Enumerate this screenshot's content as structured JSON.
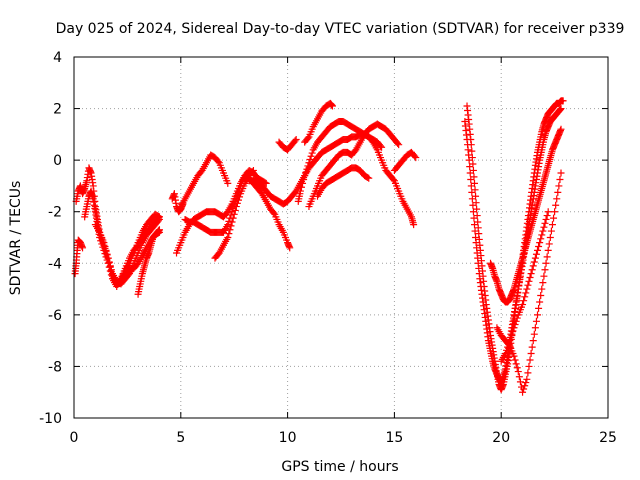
{
  "chart_data": {
    "type": "scatter",
    "title": "Day 025 of 2024, Sidereal Day-to-day VTEC variation (SDTVAR) for receiver p339",
    "xlabel": "GPS time / hours",
    "ylabel": "SDTVAR / TECUs",
    "xlim": [
      0,
      25
    ],
    "ylim": [
      -10,
      4
    ],
    "xticks": [
      "0",
      "5",
      "10",
      "15",
      "20",
      "25"
    ],
    "yticks": [
      "-10",
      "-8",
      "-6",
      "-4",
      "-2",
      "0",
      "2",
      "4"
    ],
    "grid": true,
    "marker": "plus",
    "color": "#ff0000",
    "series": [
      {
        "x": [
          0.05,
          0.1,
          0.15,
          0.2,
          0.3,
          0.4
        ],
        "y": [
          -4.4,
          -4.0,
          -3.5,
          -3.1,
          -3.2,
          -3.4
        ]
      },
      {
        "x": [
          0.1,
          0.2,
          0.3,
          0.4,
          0.5,
          0.6,
          0.7,
          0.8,
          0.9,
          1.0,
          1.1,
          1.2,
          1.4,
          1.6,
          1.8,
          2.0,
          2.2,
          2.4,
          2.6,
          2.8,
          3.0,
          3.2,
          3.4,
          3.6,
          3.8,
          4.0
        ],
        "y": [
          -1.6,
          -1.2,
          -1.0,
          -1.3,
          -1.1,
          -0.8,
          -0.3,
          -0.5,
          -1.0,
          -1.8,
          -2.3,
          -2.8,
          -3.3,
          -3.8,
          -4.5,
          -4.8,
          -4.6,
          -4.3,
          -4.0,
          -3.6,
          -3.2,
          -2.8,
          -2.5,
          -2.3,
          -2.1,
          -2.2
        ]
      },
      {
        "x": [
          0.5,
          0.6,
          0.7,
          0.8,
          0.9,
          1.0,
          1.1,
          1.2,
          1.4,
          1.6,
          1.8,
          2.0,
          2.2,
          2.4,
          2.6,
          2.8,
          3.0,
          3.2,
          3.4,
          3.6,
          3.8,
          4.0
        ],
        "y": [
          -2.2,
          -1.8,
          -1.4,
          -1.2,
          -1.5,
          -2.0,
          -2.5,
          -3.0,
          -3.5,
          -4.0,
          -4.6,
          -4.9,
          -4.6,
          -4.2,
          -3.8,
          -3.5,
          -3.3,
          -3.0,
          -2.8,
          -2.6,
          -2.4,
          -2.2
        ]
      },
      {
        "x": [
          1.0,
          1.2,
          1.4,
          1.6,
          1.8,
          2.0,
          2.2,
          2.4,
          2.6,
          2.8,
          3.0,
          3.2,
          3.4,
          3.6,
          3.8,
          4.0
        ],
        "y": [
          -2.5,
          -2.8,
          -3.2,
          -3.8,
          -4.4,
          -4.7,
          -4.8,
          -4.6,
          -4.4,
          -4.0,
          -3.6,
          -3.2,
          -2.9,
          -2.7,
          -2.5,
          -2.3
        ]
      },
      {
        "x": [
          2.2,
          2.4,
          2.6,
          2.8,
          3.0,
          3.2,
          3.4,
          3.6,
          3.8,
          4.0
        ],
        "y": [
          -4.7,
          -4.5,
          -4.3,
          -4.2,
          -4.0,
          -3.7,
          -3.4,
          -3.1,
          -2.9,
          -2.8
        ]
      },
      {
        "x": [
          3.0,
          3.1,
          3.2,
          3.3,
          3.4,
          3.5,
          3.6,
          3.7,
          3.8,
          3.9,
          4.0
        ],
        "y": [
          -5.2,
          -4.8,
          -4.4,
          -4.1,
          -3.8,
          -3.6,
          -3.3,
          -3.0,
          -2.9,
          -2.8,
          -2.7
        ]
      },
      {
        "x": [
          4.6,
          4.7,
          4.8,
          4.9,
          5.0,
          5.1
        ],
        "y": [
          -1.5,
          -1.3,
          -1.8,
          -2.0,
          -1.9,
          -1.7
        ]
      },
      {
        "x": [
          4.8,
          5.0,
          5.2,
          5.4,
          5.6,
          5.8,
          6.0,
          6.2,
          6.4,
          6.6,
          6.8,
          7.0,
          7.2,
          7.4,
          7.6,
          7.8,
          8.0,
          8.2,
          8.4,
          8.6,
          8.8,
          9.0,
          9.2,
          9.4,
          9.6,
          9.8,
          10.0,
          10.1
        ],
        "y": [
          -3.6,
          -3.2,
          -2.8,
          -2.5,
          -2.3,
          -2.2,
          -2.1,
          -2.0,
          -2.0,
          -2.0,
          -2.1,
          -2.2,
          -2.0,
          -1.7,
          -1.3,
          -0.9,
          -0.6,
          -0.7,
          -0.9,
          -1.1,
          -1.3,
          -1.6,
          -1.9,
          -2.1,
          -2.5,
          -2.8,
          -3.2,
          -3.4
        ]
      },
      {
        "x": [
          5.2,
          5.4,
          5.6,
          5.8,
          6.0,
          6.2,
          6.4,
          6.6,
          6.8,
          7.0,
          7.2,
          7.4,
          7.6,
          7.8,
          8.0,
          8.2,
          8.4,
          8.6,
          8.8,
          9.0
        ],
        "y": [
          -2.3,
          -2.4,
          -2.4,
          -2.5,
          -2.6,
          -2.7,
          -2.8,
          -2.8,
          -2.8,
          -2.8,
          -2.5,
          -2.0,
          -1.5,
          -1.0,
          -0.6,
          -0.4,
          -0.5,
          -0.7,
          -0.8,
          -0.9
        ]
      },
      {
        "x": [
          5.0,
          5.2,
          5.4,
          5.6,
          5.8,
          6.0,
          6.2,
          6.4,
          6.6,
          6.8,
          7.0,
          7.2
        ],
        "y": [
          -1.8,
          -1.5,
          -1.2,
          -0.9,
          -0.6,
          -0.4,
          -0.1,
          0.2,
          0.1,
          -0.1,
          -0.5,
          -0.9
        ]
      },
      {
        "x": [
          6.6,
          6.8,
          7.0,
          7.2,
          7.4,
          7.6,
          7.8,
          8.0,
          8.2,
          8.4
        ],
        "y": [
          -3.8,
          -3.6,
          -3.3,
          -3.0,
          -2.4,
          -1.8,
          -1.3,
          -0.9,
          -0.6,
          -0.4
        ]
      },
      {
        "x": [
          8.2,
          8.4,
          8.6,
          8.8,
          9.0,
          9.2,
          9.4,
          9.6,
          9.8,
          10.0,
          10.2,
          10.4,
          10.6,
          10.8,
          11.0,
          11.2,
          11.4,
          11.6,
          11.8,
          12.0,
          12.2,
          12.4,
          12.6,
          12.8,
          13.0,
          13.2,
          13.4,
          13.6,
          13.8,
          14.0,
          14.2,
          14.4
        ],
        "y": [
          -0.8,
          -0.8,
          -0.9,
          -1.0,
          -1.2,
          -1.4,
          -1.5,
          -1.6,
          -1.7,
          -1.6,
          -1.4,
          -1.2,
          -0.9,
          -0.6,
          -0.3,
          -0.1,
          0.1,
          0.3,
          0.4,
          0.5,
          0.6,
          0.7,
          0.8,
          0.8,
          0.9,
          0.9,
          1.0,
          1.0,
          0.9,
          0.8,
          0.7,
          0.5
        ]
      },
      {
        "x": [
          9.6,
          9.8,
          10.0,
          10.2,
          10.4
        ],
        "y": [
          0.7,
          0.5,
          0.4,
          0.6,
          0.8
        ]
      },
      {
        "x": [
          10.5,
          10.6,
          10.8,
          11.0,
          11.2,
          11.4,
          11.6,
          11.8,
          12.0,
          12.2,
          12.4,
          12.6,
          12.8,
          13.0,
          13.2,
          13.4,
          13.6,
          13.8,
          14.0,
          14.2,
          14.4,
          14.6,
          14.8,
          15.0,
          15.2,
          15.4,
          15.6,
          15.8,
          15.9
        ],
        "y": [
          -1.6,
          -1.2,
          -0.6,
          -0.1,
          0.4,
          0.7,
          0.9,
          1.1,
          1.3,
          1.4,
          1.5,
          1.5,
          1.4,
          1.3,
          1.2,
          1.1,
          1.0,
          0.9,
          0.7,
          0.4,
          0.0,
          -0.4,
          -0.6,
          -0.8,
          -1.2,
          -1.6,
          -1.9,
          -2.2,
          -2.5
        ]
      },
      {
        "x": [
          10.8,
          11.0,
          11.2,
          11.4,
          11.6,
          11.8,
          12.0,
          12.1
        ],
        "y": [
          0.7,
          0.9,
          1.3,
          1.6,
          1.9,
          2.1,
          2.2,
          2.1
        ]
      },
      {
        "x": [
          11.0,
          11.2,
          11.4,
          11.6,
          11.8,
          12.0,
          12.2,
          12.4,
          12.6,
          12.8,
          13.0,
          13.2,
          13.4,
          13.6,
          13.8,
          14.0,
          14.2,
          14.4,
          14.6,
          14.8,
          15.0,
          15.2
        ],
        "y": [
          -1.8,
          -1.4,
          -1.0,
          -0.6,
          -0.4,
          -0.2,
          0.0,
          0.2,
          0.3,
          0.3,
          0.2,
          0.4,
          0.7,
          1.0,
          1.2,
          1.3,
          1.4,
          1.3,
          1.2,
          1.0,
          0.8,
          0.6
        ]
      },
      {
        "x": [
          11.4,
          11.6,
          11.8,
          12.0,
          12.2,
          12.4,
          12.6,
          12.8,
          13.0,
          13.2,
          13.4,
          13.6,
          13.8
        ],
        "y": [
          -1.4,
          -1.1,
          -0.9,
          -0.8,
          -0.7,
          -0.6,
          -0.5,
          -0.4,
          -0.3,
          -0.3,
          -0.4,
          -0.6,
          -0.7
        ]
      },
      {
        "x": [
          15.0,
          15.2,
          15.4,
          15.6,
          15.8,
          16.0
        ],
        "y": [
          -0.4,
          -0.2,
          0.0,
          0.2,
          0.3,
          0.1
        ]
      },
      {
        "x": [
          18.3,
          18.4,
          18.5,
          18.6,
          18.7,
          18.8,
          18.9,
          19.0,
          19.1,
          19.2,
          19.3,
          19.4,
          19.5,
          19.6,
          19.7,
          19.8,
          19.9,
          20.0,
          20.1,
          20.2,
          20.3,
          20.4,
          20.5,
          20.6,
          20.7,
          20.8,
          20.9,
          21.0,
          21.1,
          21.2,
          21.3,
          21.4,
          21.5,
          21.6,
          21.7,
          21.8,
          21.9,
          22.0,
          22.1,
          22.2,
          22.3,
          22.4,
          22.5,
          22.6,
          22.7,
          22.8
        ],
        "y": [
          1.5,
          0.8,
          0.0,
          -1.0,
          -2.0,
          -3.0,
          -3.8,
          -4.6,
          -5.2,
          -5.8,
          -6.4,
          -7.0,
          -7.4,
          -7.8,
          -8.1,
          -8.3,
          -8.5,
          -8.6,
          -8.4,
          -8.1,
          -7.6,
          -7.0,
          -6.5,
          -6.0,
          -5.5,
          -5.0,
          -4.5,
          -4.0,
          -3.5,
          -3.0,
          -2.5,
          -2.0,
          -1.5,
          -1.0,
          -0.5,
          0.0,
          0.4,
          0.8,
          1.1,
          1.3,
          1.5,
          1.6,
          1.7,
          1.8,
          1.9,
          2.0
        ]
      },
      {
        "x": [
          18.4,
          18.5,
          18.6,
          18.7,
          18.8,
          18.9,
          19.0,
          19.1,
          19.2,
          19.3,
          19.4,
          19.5,
          19.6,
          19.7,
          19.8,
          19.9,
          20.0,
          20.1,
          20.2,
          20.3,
          20.4,
          20.5,
          20.6,
          20.7,
          20.8,
          20.9,
          21.0,
          21.1,
          21.2,
          21.3,
          21.4,
          21.5,
          21.6,
          21.7,
          21.8,
          21.9,
          22.0,
          22.1,
          22.2,
          22.3,
          22.4,
          22.5,
          22.6,
          22.7,
          22.8,
          22.9
        ],
        "y": [
          2.1,
          1.4,
          0.6,
          -0.4,
          -1.4,
          -2.4,
          -3.3,
          -4.1,
          -4.9,
          -5.6,
          -6.2,
          -6.8,
          -7.3,
          -7.8,
          -8.3,
          -8.7,
          -8.9,
          -8.7,
          -8.3,
          -7.9,
          -7.4,
          -6.8,
          -6.2,
          -5.6,
          -5.0,
          -4.4,
          -3.8,
          -3.2,
          -2.6,
          -2.0,
          -1.4,
          -0.8,
          -0.2,
          0.3,
          0.7,
          1.1,
          1.4,
          1.6,
          1.8,
          1.9,
          2.0,
          2.1,
          2.2,
          2.2,
          2.3,
          2.3
        ]
      },
      {
        "x": [
          19.5,
          19.6,
          19.7,
          19.8,
          19.9,
          20.0,
          20.1,
          20.2,
          20.3,
          20.4,
          20.5,
          20.6,
          20.7,
          20.8,
          20.9,
          21.0,
          21.1,
          21.2,
          21.3,
          21.4,
          21.5,
          21.6,
          21.7,
          21.8,
          21.9,
          22.0,
          22.1,
          22.2,
          22.3,
          22.4,
          22.5,
          22.6,
          22.7,
          22.8
        ],
        "y": [
          -4.0,
          -4.2,
          -4.5,
          -4.7,
          -5.0,
          -5.2,
          -5.4,
          -5.5,
          -5.5,
          -5.4,
          -5.2,
          -5.0,
          -4.7,
          -4.4,
          -4.1,
          -3.8,
          -3.5,
          -3.2,
          -2.9,
          -2.6,
          -2.3,
          -2.0,
          -1.7,
          -1.4,
          -1.1,
          -0.8,
          -0.5,
          -0.2,
          0.1,
          0.4,
          0.6,
          0.8,
          1.0,
          1.2
        ]
      },
      {
        "x": [
          19.8,
          20.0,
          20.2,
          20.4,
          20.6,
          20.8,
          21.0,
          21.2,
          21.4,
          21.6,
          21.8,
          22.0,
          22.2,
          22.4,
          22.6,
          22.8
        ],
        "y": [
          -6.5,
          -6.8,
          -7.0,
          -7.2,
          -7.6,
          -8.2,
          -9.0,
          -8.5,
          -7.5,
          -6.5,
          -5.5,
          -4.5,
          -3.5,
          -2.5,
          -1.5,
          -0.5
        ]
      },
      {
        "x": [
          20.0,
          20.2,
          20.4,
          20.6,
          20.8,
          21.0,
          21.2,
          21.4,
          21.6,
          21.8,
          22.0,
          22.2
        ],
        "y": [
          -7.8,
          -7.5,
          -7.0,
          -6.5,
          -6.0,
          -5.6,
          -5.0,
          -4.4,
          -3.8,
          -3.2,
          -2.6,
          -2.0
        ]
      }
    ]
  }
}
